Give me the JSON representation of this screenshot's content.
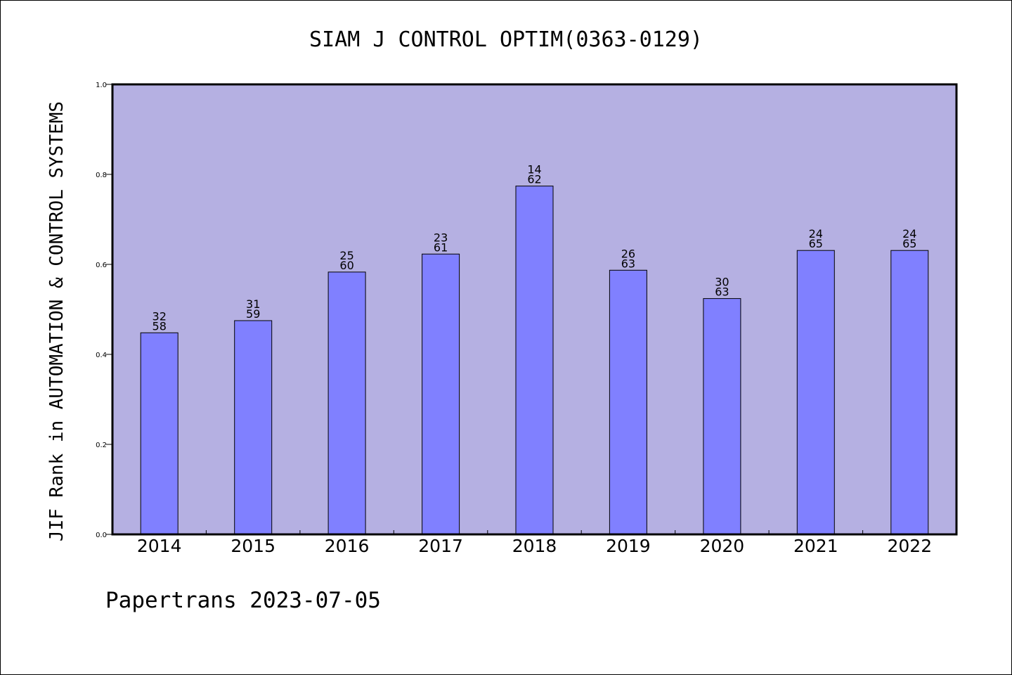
{
  "chart_data": {
    "type": "bar",
    "title": "SIAM J CONTROL OPTIM(0363-0129)",
    "xlabel": "",
    "ylabel": "JIF Rank in AUTOMATION & CONTROL SYSTEMS",
    "ylim": [
      0.0,
      1.0
    ],
    "yticks": [
      "0.0",
      "0.2",
      "0.4",
      "0.6",
      "0.8",
      "1.0"
    ],
    "categories": [
      "2014",
      "2015",
      "2016",
      "2017",
      "2018",
      "2019",
      "2020",
      "2021",
      "2022"
    ],
    "values": [
      0.448,
      0.475,
      0.583,
      0.623,
      0.774,
      0.587,
      0.524,
      0.631,
      0.631
    ],
    "bar_labels": [
      [
        "32",
        "58"
      ],
      [
        "31",
        "59"
      ],
      [
        "25",
        "60"
      ],
      [
        "23",
        "61"
      ],
      [
        "14",
        "62"
      ],
      [
        "26",
        "63"
      ],
      [
        "30",
        "63"
      ],
      [
        "24",
        "65"
      ],
      [
        "24",
        "65"
      ]
    ],
    "grid": false,
    "colors": {
      "plot_background": "#b5b0e2",
      "bar_fill": "#8080ff",
      "bar_stroke": "#000000",
      "axis": "#000000"
    }
  },
  "footer": {
    "text": "Papertrans 2023-07-05"
  }
}
